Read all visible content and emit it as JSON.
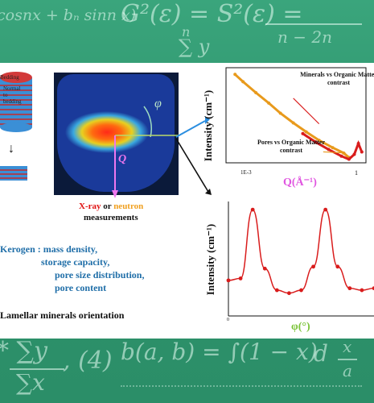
{
  "background_formulas": {
    "top_left": "cosnx + bₙ sinn x)",
    "top_mid": "G²(ε) = S²(ε) =",
    "top_frac_den": "n − 2n",
    "top_sum": "∑ y",
    "top_sum_index": "n",
    "bottom_left": "* ∑y",
    "bottom_left_den": "∑x",
    "bottom_tuple": ", (4)",
    "bottom_mid": "b(a, b) = ∫(1 − x)",
    "bottom_right": "d",
    "bottom_frac_num": "x",
    "bottom_frac_den": "a"
  },
  "sample": {
    "bedding_label": "Bedding",
    "normal_label": "Normal to bedding",
    "down_arrow": "↓"
  },
  "detector": {
    "phi_label": "φ",
    "q_label": "Q"
  },
  "measurement": {
    "xray": "X-ray",
    "or": " or ",
    "neutron": "neutron",
    "line2": "measurements"
  },
  "kerogen": {
    "line1": "Kerogen : mass density,",
    "line2": "storage capacity,",
    "line3": "pore size distribution,",
    "line4": "pore content"
  },
  "lamellar": "Lamellar minerals orientation",
  "chart_data": [
    {
      "type": "line",
      "xscale": "log",
      "xlabel": "Q(Å⁻¹)",
      "ylabel": "Intensity (cm⁻¹)",
      "xticks": [
        "1E-3",
        "1"
      ],
      "annotations": [
        "Minerals vs Organic Matter contrast",
        "Pores vs Organic Matter contrast"
      ],
      "series": [
        {
          "color": "#e89a1c",
          "x": [
            0.0013,
            0.002,
            0.004,
            0.008,
            0.015,
            0.03,
            0.06,
            0.12,
            0.25,
            0.45,
            0.6
          ],
          "values": [
            100000,
            30000,
            5000,
            900,
            170,
            35,
            8,
            2,
            0.6,
            0.25,
            0.12
          ]
        },
        {
          "color": "#d91c1c",
          "x": [
            0.05,
            0.1,
            0.2,
            0.4,
            0.6,
            0.8,
            1.0,
            1.2
          ],
          "values": [
            6,
            1.5,
            0.45,
            0.15,
            0.09,
            0.2,
            1.2,
            0.3
          ]
        }
      ]
    },
    {
      "type": "line",
      "xlabel": "φ(°)",
      "ylabel": "Intensity (cm⁻¹)",
      "xticks": [
        "0"
      ],
      "series": [
        {
          "color": "#d91c1c",
          "x": [
            0,
            30,
            60,
            90,
            120,
            150,
            180,
            210,
            240,
            270,
            300,
            330,
            360
          ],
          "values": [
            0.28,
            0.3,
            1.0,
            0.4,
            0.18,
            0.15,
            0.18,
            0.42,
            1.0,
            0.42,
            0.2,
            0.18,
            0.2
          ]
        }
      ]
    }
  ]
}
